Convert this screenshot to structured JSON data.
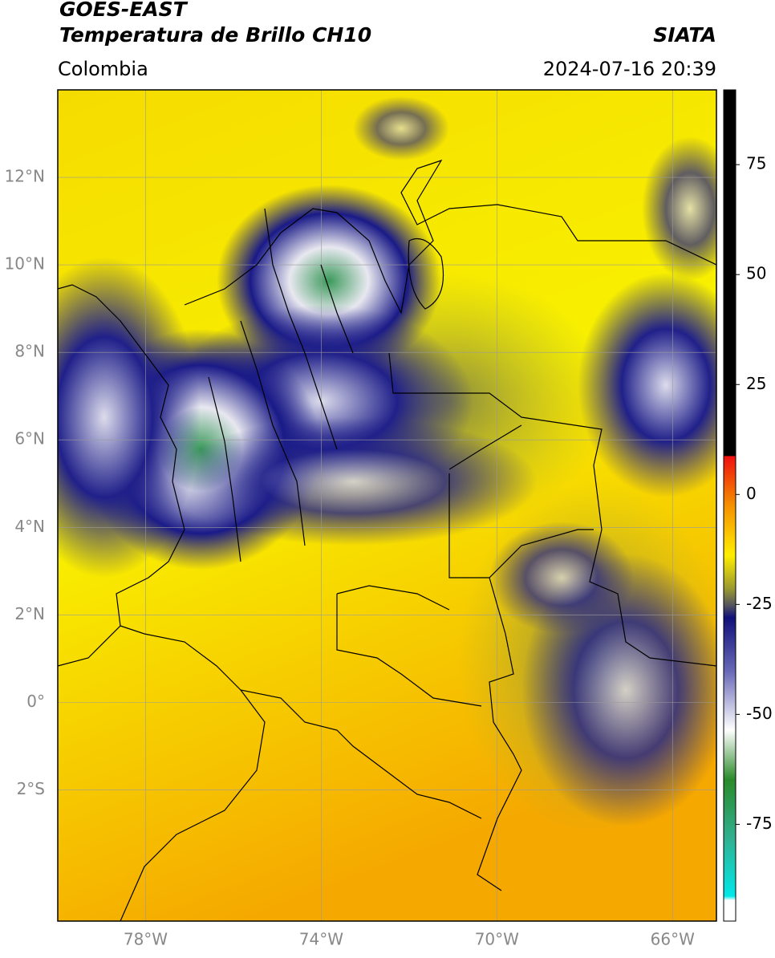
{
  "header": {
    "title": "GOES-EAST",
    "subtitle": "Temperatura de Brillo CH10",
    "source": "SIATA",
    "region": "Colombia",
    "datetime": "2024-07-16 20:39"
  },
  "map": {
    "xlim": [
      -80,
      -65
    ],
    "ylim": [
      -5,
      14
    ],
    "xticks": [
      {
        "value": -78,
        "label": "78°W"
      },
      {
        "value": -74,
        "label": "74°W"
      },
      {
        "value": -70,
        "label": "70°W"
      },
      {
        "value": -66,
        "label": "66°W"
      }
    ],
    "yticks": [
      {
        "value": -2,
        "label": "2°S"
      },
      {
        "value": 0,
        "label": "0°"
      },
      {
        "value": 2,
        "label": "2°N"
      },
      {
        "value": 4,
        "label": "4°N"
      },
      {
        "value": 6,
        "label": "6°N"
      },
      {
        "value": 8,
        "label": "8°N"
      },
      {
        "value": 10,
        "label": "10°N"
      },
      {
        "value": 12,
        "label": "12°N"
      }
    ],
    "grid": true
  },
  "colorbar": {
    "lim": [
      -97,
      92
    ],
    "ticks": [
      -75,
      -50,
      -25,
      0,
      25,
      50,
      75
    ]
  }
}
